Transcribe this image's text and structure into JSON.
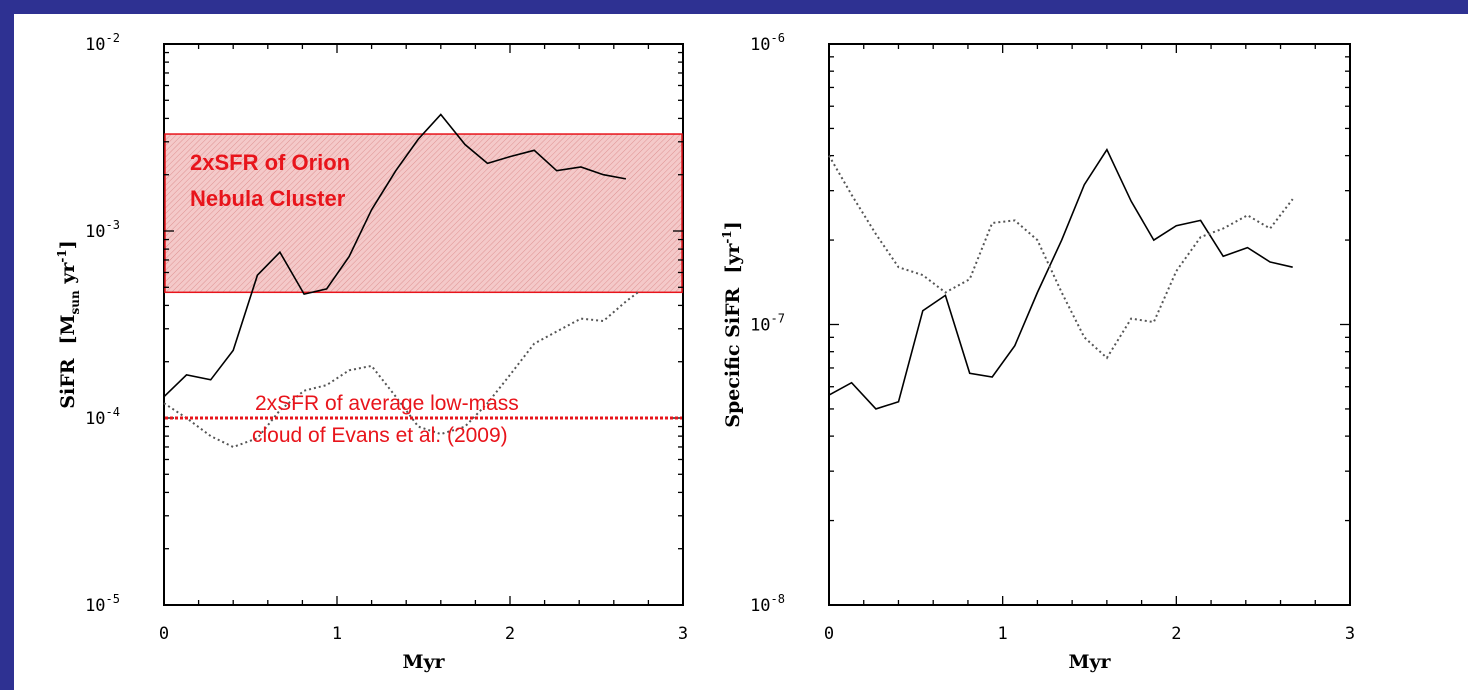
{
  "colors": {
    "background": "#2e3192",
    "annotation": "#e8141b",
    "line": "#000000"
  },
  "chart_data": [
    {
      "type": "line",
      "xlabel": "Myr",
      "ylabel": "SiFR [M_sun yr^-1]",
      "ylabel_main": "SiFR",
      "ylabel_unit_open": "[M",
      "ylabel_unit_sub": "sun",
      "ylabel_unit_mid": " yr",
      "ylabel_unit_sup": "-1",
      "ylabel_unit_close": "]",
      "xlim": [
        0,
        3
      ],
      "ylim": [
        1e-05,
        0.01
      ],
      "yscale": "log",
      "xticks": [
        "0",
        "1",
        "2",
        "3"
      ],
      "yticks": [
        {
          "base": "10",
          "exp": "-5"
        },
        {
          "base": "10",
          "exp": "-4"
        },
        {
          "base": "10",
          "exp": "-3"
        },
        {
          "base": "10",
          "exp": "-2"
        }
      ],
      "series": [
        {
          "style": "solid",
          "x": [
            0.0,
            0.13,
            0.27,
            0.4,
            0.54,
            0.67,
            0.81,
            0.94,
            1.07,
            1.2,
            1.34,
            1.47,
            1.6,
            1.74,
            1.87,
            2.0,
            2.14,
            2.27,
            2.41,
            2.54,
            2.67
          ],
          "y": [
            0.00013,
            0.00017,
            0.00016,
            0.00023,
            0.00058,
            0.00077,
            0.00046,
            0.00049,
            0.00073,
            0.0013,
            0.0021,
            0.0031,
            0.0042,
            0.0029,
            0.0023,
            0.0025,
            0.0027,
            0.0021,
            0.0022,
            0.002,
            0.0019
          ]
        },
        {
          "style": "dotted",
          "x": [
            0.0,
            0.13,
            0.27,
            0.4,
            0.54,
            0.67,
            0.81,
            0.94,
            1.07,
            1.2,
            1.34,
            1.47,
            1.6,
            1.74,
            1.87,
            2.0,
            2.14,
            2.27,
            2.41,
            2.54,
            2.67,
            2.74
          ],
          "y": [
            0.00012,
            0.0001,
            8e-05,
            7e-05,
            7.8e-05,
            0.00011,
            0.00014,
            0.00015,
            0.00018,
            0.00019,
            0.00013,
            9e-05,
            8.2e-05,
            9e-05,
            0.00012,
            0.00017,
            0.00025,
            0.00029,
            0.00034,
            0.00033,
            0.00042,
            0.00047
          ]
        }
      ],
      "annotations": {
        "orion_box": {
          "x0": 0.0,
          "x1": 3.0,
          "y0": 0.00047,
          "y1": 0.0033
        },
        "orion_label_line1": "2xSFR of Orion",
        "orion_label_line2": "Nebula Cluster",
        "evans_level": 0.0001,
        "evans_label_line1": "2xSFR of average low-mass",
        "evans_label_line2": "cloud of Evans et al. (2009)"
      }
    },
    {
      "type": "line",
      "xlabel": "Myr",
      "ylabel": "Specific SiFR [yr^-1]",
      "ylabel_main": "Specific SiFR",
      "ylabel_unit_open": "[yr",
      "ylabel_unit_sup": "-1",
      "ylabel_unit_close": "]",
      "xlim": [
        0,
        3
      ],
      "ylim": [
        1e-08,
        1e-06
      ],
      "yscale": "log",
      "xticks": [
        "0",
        "1",
        "2",
        "3"
      ],
      "yticks": [
        {
          "base": "10",
          "exp": "-8"
        },
        {
          "base": "10",
          "exp": "-7"
        },
        {
          "base": "10",
          "exp": "-6"
        }
      ],
      "series": [
        {
          "style": "solid",
          "x": [
            0.0,
            0.13,
            0.27,
            0.4,
            0.54,
            0.67,
            0.81,
            0.94,
            1.07,
            1.2,
            1.34,
            1.47,
            1.6,
            1.74,
            1.87,
            2.0,
            2.14,
            2.27,
            2.41,
            2.54,
            2.67
          ],
          "y": [
            5.6e-08,
            6.2e-08,
            5e-08,
            5.3e-08,
            1.12e-07,
            1.27e-07,
            6.7e-08,
            6.5e-08,
            8.4e-08,
            1.3e-07,
            2e-07,
            3.15e-07,
            4.2e-07,
            2.75e-07,
            2e-07,
            2.25e-07,
            2.35e-07,
            1.75e-07,
            1.88e-07,
            1.67e-07,
            1.6e-07
          ]
        },
        {
          "style": "dotted",
          "x": [
            0.0,
            0.13,
            0.27,
            0.4,
            0.54,
            0.67,
            0.81,
            0.94,
            1.07,
            1.2,
            1.34,
            1.47,
            1.6,
            1.74,
            1.87,
            2.0,
            2.14,
            2.27,
            2.41,
            2.54,
            2.67
          ],
          "y": [
            4e-07,
            2.9e-07,
            2.1e-07,
            1.6e-07,
            1.5e-07,
            1.3e-07,
            1.45e-07,
            2.3e-07,
            2.35e-07,
            2e-07,
            1.3e-07,
            9e-08,
            7.6e-08,
            1.05e-07,
            1.02e-07,
            1.55e-07,
            2.05e-07,
            2.2e-07,
            2.45e-07,
            2.2e-07,
            2.8e-07
          ]
        }
      ]
    }
  ]
}
